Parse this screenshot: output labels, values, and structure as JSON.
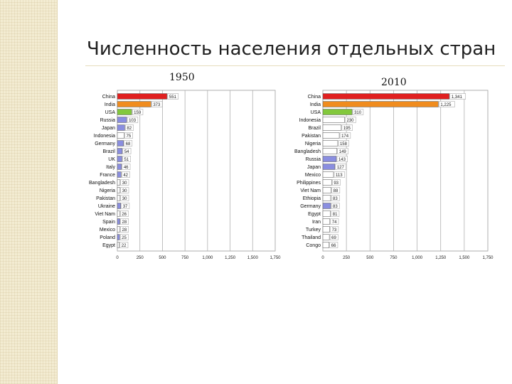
{
  "slide": {
    "title": "Численность населения отдельных стран",
    "colors": {
      "sidebar": "#f3ecd2",
      "title": "#1f1f1f"
    }
  },
  "chart_data": [
    {
      "type": "bar",
      "orientation": "horizontal",
      "title": "1950",
      "categories": [
        "China",
        "India",
        "USA",
        "Russia",
        "Japan",
        "Indonesia",
        "Germany",
        "Brazil",
        "UK",
        "Italy",
        "France",
        "Bangladesh",
        "Nigeria",
        "Pakistan",
        "Ukraine",
        "Viet Nam",
        "Spain",
        "Mexico",
        "Poland",
        "Egypt"
      ],
      "values": [
        551,
        373,
        159,
        103,
        82,
        75,
        68,
        54,
        51,
        46,
        42,
        30,
        30,
        30,
        37,
        26,
        28,
        28,
        25,
        22
      ],
      "value_labels": [
        "551",
        "373",
        "159",
        "103",
        "82",
        "75",
        "68",
        "54",
        "51",
        "46",
        "42",
        "30",
        "30",
        "30",
        "37",
        "26",
        "28",
        "28",
        "25",
        "22"
      ],
      "bar_colors": [
        "#e02020",
        "#f08c1e",
        "#82c83c",
        "#8a8ee0",
        "#8a8ee0",
        "#ffffff",
        "#8a8ee0",
        "#8a8ee0",
        "#8a8ee0",
        "#8a8ee0",
        "#8a8ee0",
        "#ffffff",
        "#ffffff",
        "#ffffff",
        "#8a8ee0",
        "#ffffff",
        "#8a8ee0",
        "#ffffff",
        "#8a8ee0",
        "#ffffff"
      ],
      "xlim": [
        0,
        1750
      ],
      "xticks": [
        "0",
        "250",
        "500",
        "750",
        "1,000",
        "1,250",
        "1,500",
        "1,750"
      ],
      "grid": true
    },
    {
      "type": "bar",
      "orientation": "horizontal",
      "title": "2010",
      "categories": [
        "China",
        "India",
        "USA",
        "Indonesia",
        "Brazil",
        "Pakistan",
        "Nigeria",
        "Bangladesh",
        "Russia",
        "Japan",
        "Mexico",
        "Philippines",
        "Viet Nam",
        "Ethiopia",
        "Germany",
        "Egypt",
        "Iran",
        "Turkey",
        "Thailand",
        "Congo"
      ],
      "values": [
        1341,
        1225,
        310,
        230,
        195,
        174,
        158,
        149,
        143,
        127,
        113,
        93,
        88,
        83,
        83,
        81,
        74,
        73,
        69,
        66
      ],
      "value_labels": [
        "1,341",
        "1,225",
        "310",
        "230",
        "195",
        "174",
        "158",
        "149",
        "143",
        "127",
        "113",
        "93",
        "88",
        "83",
        "83",
        "81",
        "74",
        "73",
        "69",
        "66"
      ],
      "bar_colors": [
        "#e02020",
        "#f08c1e",
        "#82c83c",
        "#ffffff",
        "#ffffff",
        "#ffffff",
        "#ffffff",
        "#ffffff",
        "#8a8ee0",
        "#8a8ee0",
        "#ffffff",
        "#ffffff",
        "#ffffff",
        "#ffffff",
        "#8a8ee0",
        "#ffffff",
        "#ffffff",
        "#ffffff",
        "#ffffff",
        "#ffffff"
      ],
      "xlim": [
        0,
        1750
      ],
      "xticks": [
        "0",
        "250",
        "500",
        "750",
        "1,000",
        "1,250",
        "1,500",
        "1,750"
      ],
      "grid": true
    }
  ]
}
